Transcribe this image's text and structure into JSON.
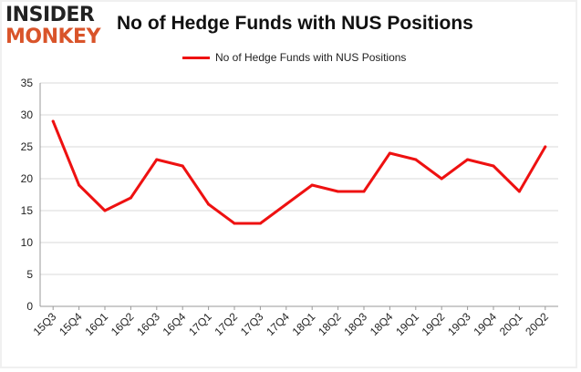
{
  "logo": {
    "top_text": "INSIDER",
    "bottom_text": "MONKEY"
  },
  "header": {
    "title": "No of Hedge Funds with NUS Positions"
  },
  "colors": {
    "series": "#ee1111",
    "grid": "#d9d9d9",
    "axis": "#999999"
  },
  "chart_data": {
    "type": "line",
    "title": "No of Hedge Funds with NUS Positions",
    "categories": [
      "15Q3",
      "15Q4",
      "16Q1",
      "16Q2",
      "16Q3",
      "16Q4",
      "17Q1",
      "17Q2",
      "17Q3",
      "17Q4",
      "18Q1",
      "18Q2",
      "18Q3",
      "18Q4",
      "19Q1",
      "19Q2",
      "19Q3",
      "19Q4",
      "20Q1",
      "20Q2"
    ],
    "series": [
      {
        "name": "No of Hedge Funds with NUS Positions",
        "values": [
          29,
          19,
          15,
          17,
          23,
          22,
          16,
          13,
          13,
          16,
          19,
          18,
          18,
          24,
          23,
          20,
          23,
          22,
          18,
          25
        ]
      }
    ],
    "ylim": [
      0,
      35
    ],
    "yticks": [
      0,
      5,
      10,
      15,
      20,
      25,
      30,
      35
    ],
    "grid": true,
    "legend": "top-center"
  }
}
